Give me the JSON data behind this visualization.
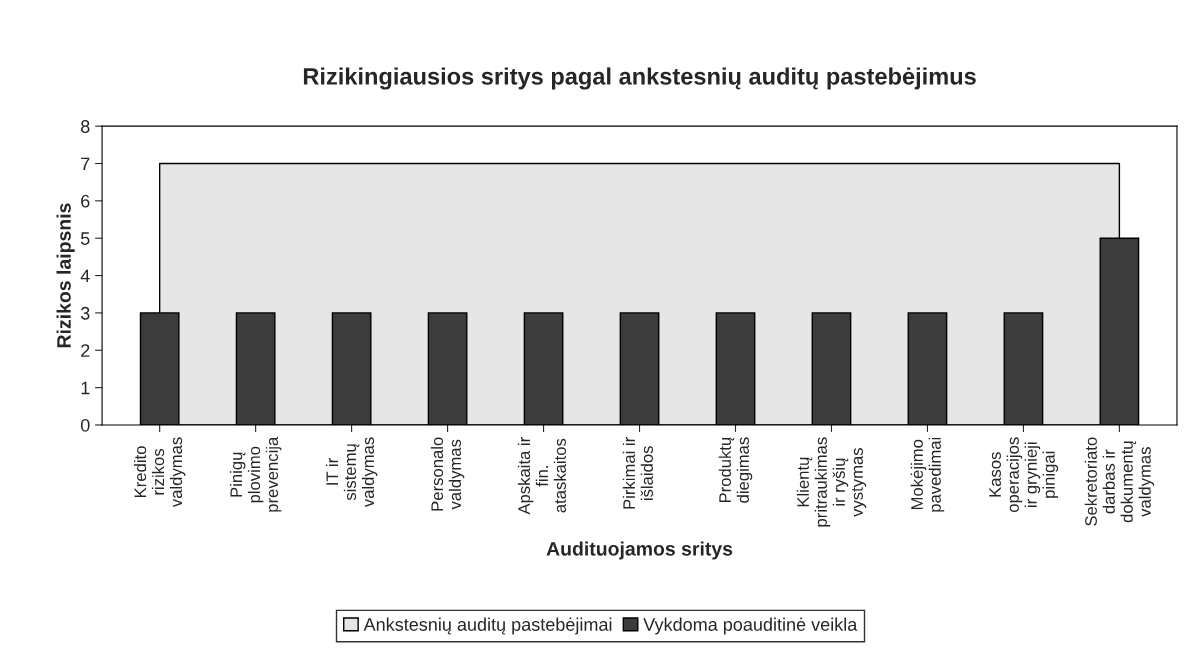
{
  "chart_data": {
    "type": "bar",
    "title": "Rizikingiausios sritys pagal ankstesnių auditų pastebėjimus",
    "xlabel": "Audituojamos sritys",
    "ylabel": "Rizikos laipsnis",
    "categories": [
      "Kredito rizikos valdymas",
      "Pinigų plovimo prevencija",
      "IT ir sistemų valdymas",
      "Personalo valdymas",
      "Apskaita ir fin. ataskaitos",
      "Pirkimai ir išlaidos",
      "Produktų diegimas",
      "Klientų pritraukimas ir ryšių vystymas",
      "Mokėjimo pavedimai",
      "Kasos operacijos ir grynieji pinigai",
      "Sekretoriato darbas ir dokumentų valdymas"
    ],
    "series": [
      {
        "name": "Ankstesnių auditų pastebėjimai",
        "type": "area",
        "color": "#e6e6e6",
        "values": [
          7,
          7,
          7,
          7,
          7,
          7,
          7,
          7,
          7,
          7,
          7
        ]
      },
      {
        "name": "Vykdoma poauditinė veikla",
        "color": "#3c3c3c",
        "values": [
          3,
          3,
          3,
          3,
          3,
          3,
          3,
          3,
          3,
          3,
          5
        ]
      }
    ],
    "ylim": [
      0,
      8
    ],
    "yticks": [
      0,
      1,
      2,
      3,
      4,
      5,
      6,
      7,
      8
    ],
    "grid": false,
    "legend": "bottom"
  }
}
